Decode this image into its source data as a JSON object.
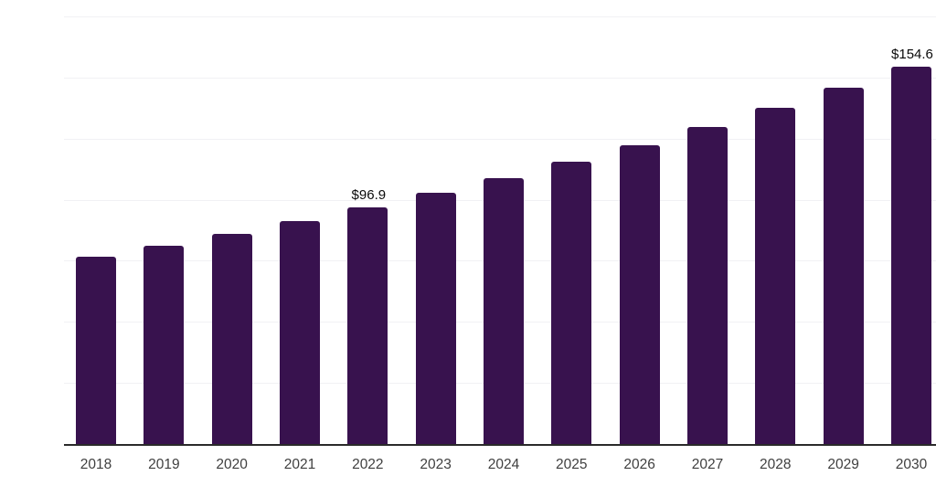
{
  "colors": {
    "bar_fill": "#38124e",
    "axis_line": "#2a2a2a",
    "gridline": "#f1f1f4",
    "tick_label": "#3f3f3f",
    "value_label": "#0a0a0a",
    "background": "#ffffff"
  },
  "chart_data": {
    "type": "bar",
    "title": "",
    "xlabel": "",
    "ylabel": "",
    "categories": [
      "2018",
      "2019",
      "2020",
      "2021",
      "2022",
      "2023",
      "2024",
      "2025",
      "2026",
      "2027",
      "2028",
      "2029",
      "2030"
    ],
    "values": [
      76.7,
      81.3,
      86.2,
      91.4,
      96.9,
      102.7,
      108.9,
      115.4,
      122.4,
      129.7,
      137.5,
      145.8,
      154.6
    ],
    "visible_value_labels": [
      {
        "category": "2022",
        "index": 4,
        "text": "$96.9"
      },
      {
        "category": "2030",
        "index": 12,
        "text": "$154.6"
      }
    ],
    "value_prefix": "$",
    "ylim": [
      0,
      175
    ],
    "gridline_step": 25,
    "grid": true,
    "legend": "none",
    "y_axis_tick_labels_visible": false
  }
}
